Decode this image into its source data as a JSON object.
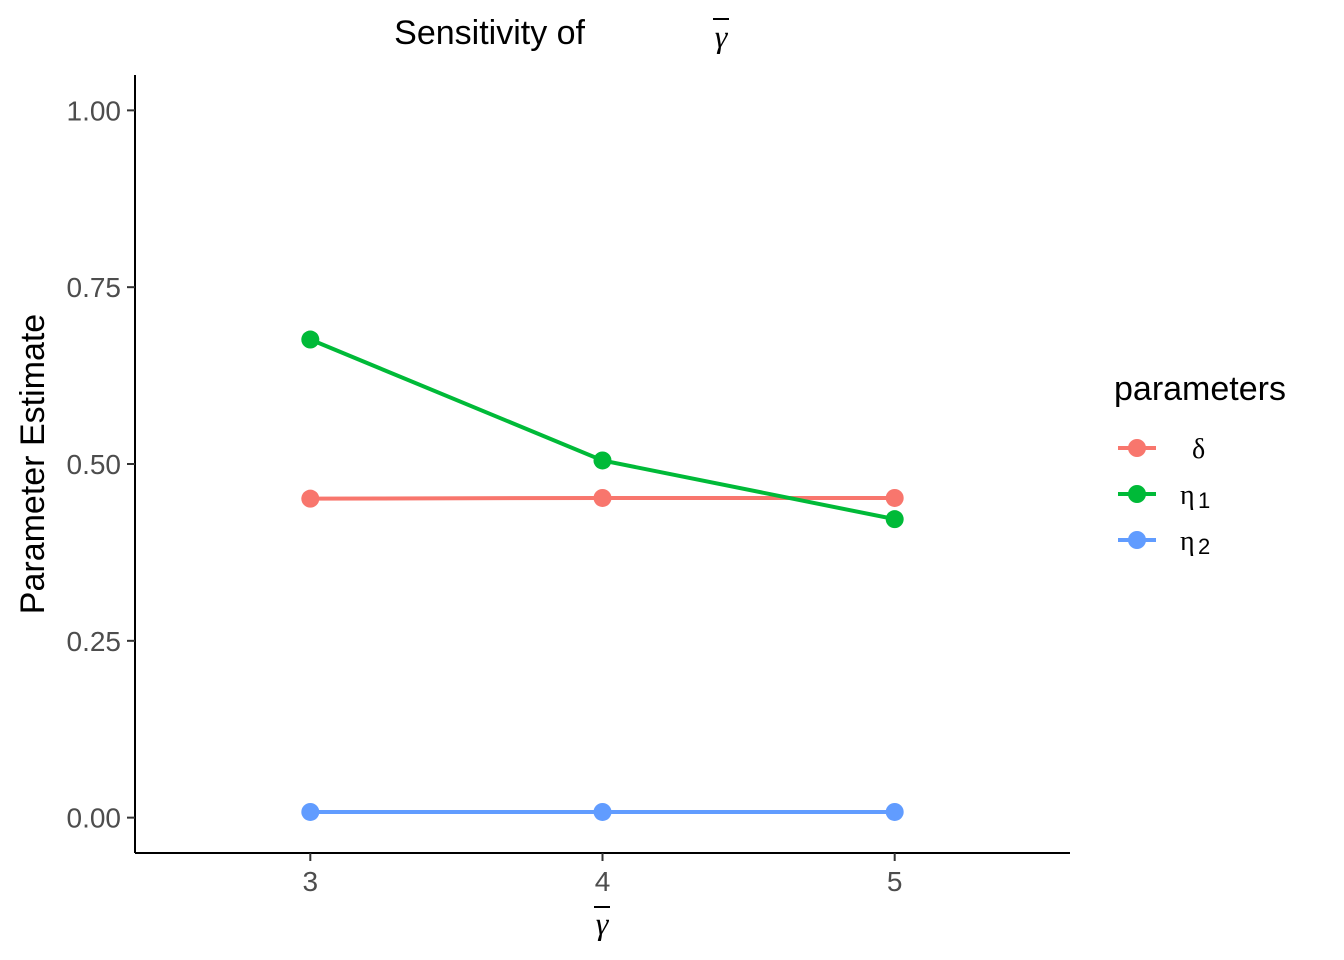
{
  "chart_data": {
    "type": "line",
    "title": "Sensitivity of",
    "title_symbol": "γ",
    "xlabel_symbol": "γ",
    "ylabel": "Parameter Estimate",
    "x": [
      3,
      4,
      5
    ],
    "x_tick_labels": [
      "3",
      "4",
      "5"
    ],
    "xlim": [
      2.4,
      5.6
    ],
    "ylim": [
      -0.05,
      1.05
    ],
    "y_ticks": [
      0.0,
      0.25,
      0.5,
      0.75,
      1.0
    ],
    "y_tick_labels": [
      "0.00",
      "0.25",
      "0.50",
      "0.75",
      "1.00"
    ],
    "grid": false,
    "legend": {
      "title": "parameters",
      "position": "right"
    },
    "series": [
      {
        "name": "δ",
        "sub": "",
        "color": "#F8766D",
        "values": [
          0.451,
          0.452,
          0.452
        ]
      },
      {
        "name": "η",
        "sub": "1",
        "color": "#00BA38",
        "values": [
          0.676,
          0.505,
          0.422
        ]
      },
      {
        "name": "η",
        "sub": "2",
        "color": "#619CFF",
        "values": [
          0.008,
          0.008,
          0.008
        ]
      }
    ]
  }
}
